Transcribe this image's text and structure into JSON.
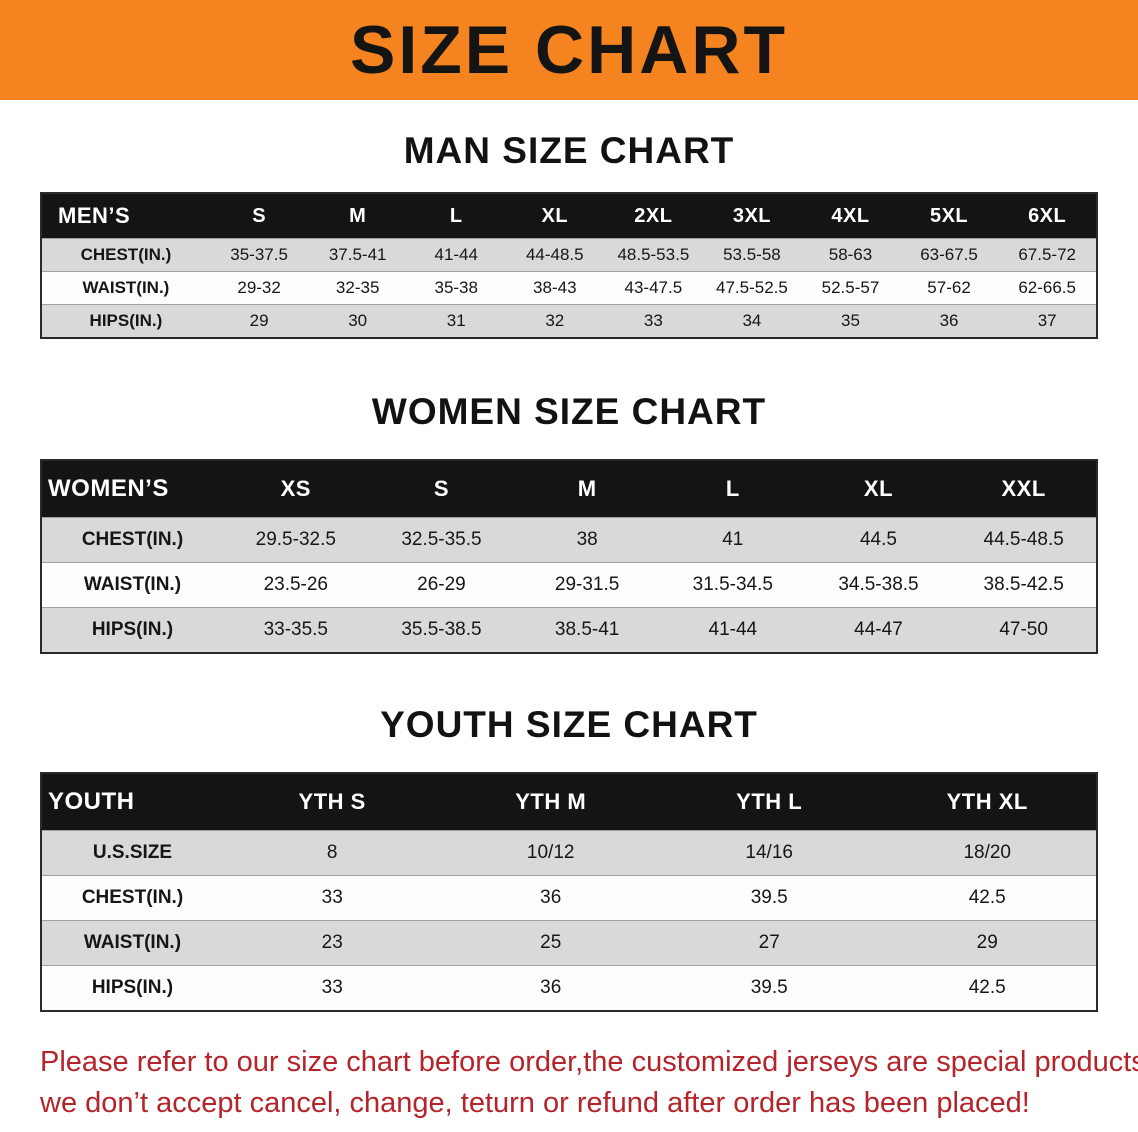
{
  "banner": {
    "title": "SIZE CHART"
  },
  "chart_data": [
    {
      "type": "table",
      "title": "MAN SIZE CHART",
      "columns": [
        "MEN’S",
        "S",
        "M",
        "L",
        "XL",
        "2XL",
        "3XL",
        "4XL",
        "5XL",
        "6XL"
      ],
      "rows": [
        [
          "CHEST(IN.)",
          "35-37.5",
          "37.5-41",
          "41-44",
          "44-48.5",
          "48.5-53.5",
          "53.5-58",
          "58-63",
          "63-67.5",
          "67.5-72"
        ],
        [
          "WAIST(IN.)",
          "29-32",
          "32-35",
          "35-38",
          "38-43",
          "43-47.5",
          "47.5-52.5",
          "52.5-57",
          "57-62",
          "62-66.5"
        ],
        [
          "HIPS(IN.)",
          "29",
          "30",
          "31",
          "32",
          "33",
          "34",
          "35",
          "36",
          "37"
        ]
      ]
    },
    {
      "type": "table",
      "title": "WOMEN SIZE CHART",
      "columns": [
        "WOMEN’S",
        "XS",
        "S",
        "M",
        "L",
        "XL",
        "XXL"
      ],
      "rows": [
        [
          "CHEST(IN.)",
          "29.5-32.5",
          "32.5-35.5",
          "38",
          "41",
          "44.5",
          "44.5-48.5"
        ],
        [
          "WAIST(IN.)",
          "23.5-26",
          "26-29",
          "29-31.5",
          "31.5-34.5",
          "34.5-38.5",
          "38.5-42.5"
        ],
        [
          "HIPS(IN.)",
          "33-35.5",
          "35.5-38.5",
          "38.5-41",
          "41-44",
          "44-47",
          "47-50"
        ]
      ]
    },
    {
      "type": "table",
      "title": "YOUTH SIZE CHART",
      "columns": [
        "YOUTH",
        "YTH S",
        "YTH M",
        "YTH L",
        "YTH XL"
      ],
      "rows": [
        [
          "U.S.SIZE",
          "8",
          "10/12",
          "14/16",
          "18/20"
        ],
        [
          "CHEST(IN.)",
          "33",
          "36",
          "39.5",
          "42.5"
        ],
        [
          "WAIST(IN.)",
          "23",
          "25",
          "27",
          "29"
        ],
        [
          "HIPS(IN.)",
          "33",
          "36",
          "39.5",
          "42.5"
        ]
      ]
    }
  ],
  "footer": {
    "line1": "Please refer to our size chart before order,the customized jerseys are special products,",
    "line2": "we don’t accept cancel, change, teturn or refund after order has been placed!"
  },
  "colors": {
    "banner_bg": "#f5831f",
    "header_row_bg": "#141414",
    "stripe_gray": "#d9d9d9",
    "note_red": "#b5242a"
  }
}
